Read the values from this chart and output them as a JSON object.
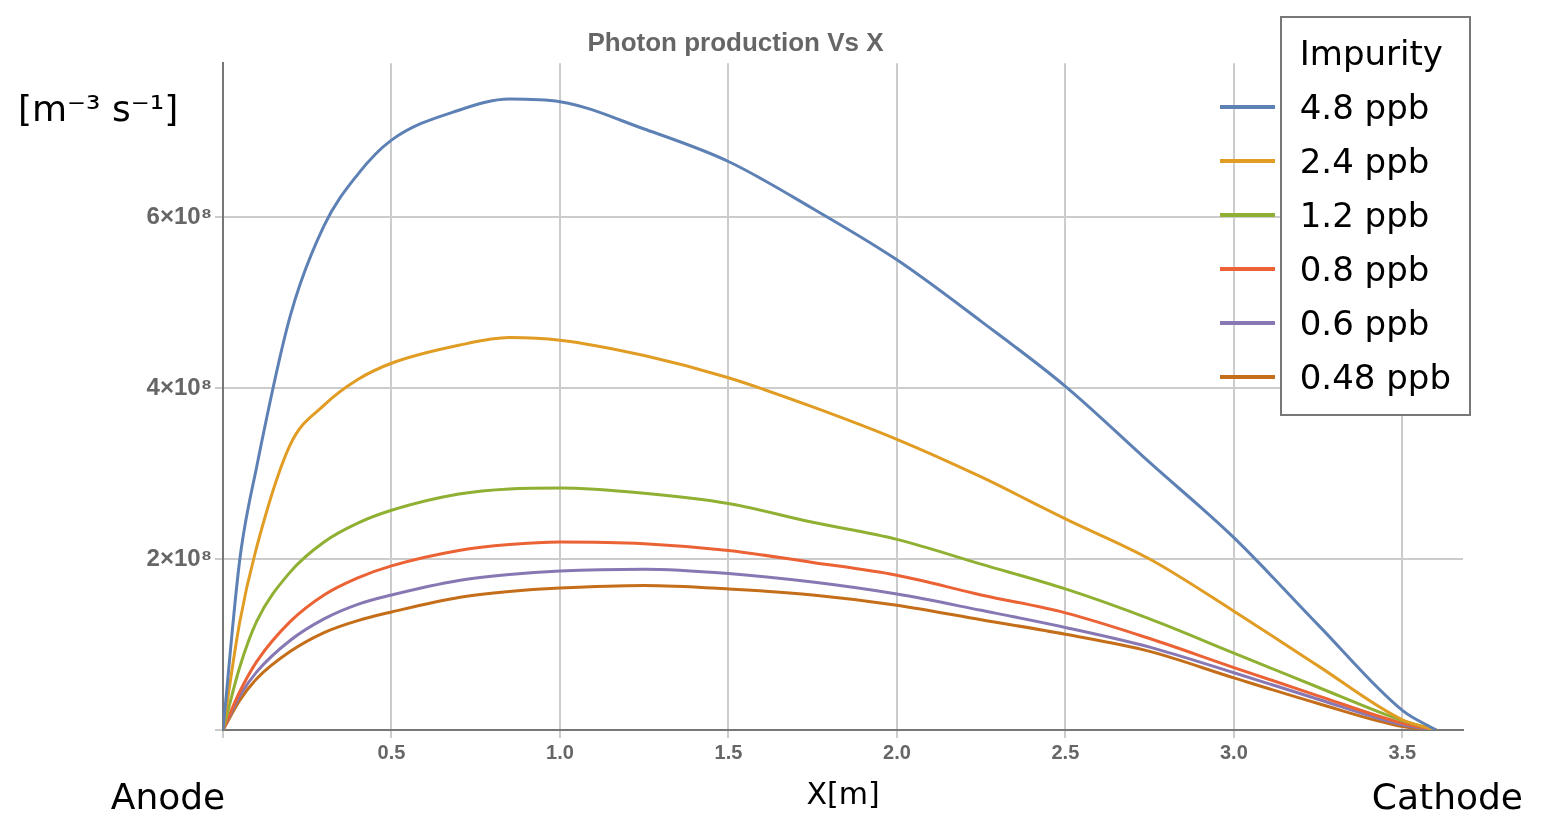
{
  "chart_data": {
    "type": "line",
    "title": "Photon production Vs X",
    "xlabel": "X[m]",
    "ylabel": "[m⁻³ s⁻¹]",
    "legend_title": "Impurity",
    "legend": "top right",
    "grid": true,
    "marker": "none",
    "line_style": "solid",
    "annotations": [
      "Anode",
      "Cathode"
    ],
    "xlim": [
      0,
      3.68
    ],
    "ylim": [
      0,
      780000000.0
    ],
    "xticks": [
      {
        "value": 0,
        "label": null
      },
      0.5,
      {
        "value": 1,
        "label": "1.0"
      },
      1.5,
      {
        "value": 2,
        "label": "2.0"
      },
      2.5,
      {
        "value": 3,
        "label": "3.0"
      },
      3.5
    ],
    "yticks": [
      {
        "value": 0,
        "label": null
      },
      {
        "value": 200000000.0,
        "label": "2×10⁸"
      },
      {
        "value": 400000000.0,
        "label": "4×10⁸"
      },
      {
        "value": 600000000.0,
        "label": "6×10⁸"
      }
    ],
    "x": [
      0,
      0.05,
      0.1,
      0.2,
      0.3,
      0.4,
      0.5,
      0.7,
      0.85,
      1.0,
      1.25,
      1.5,
      1.75,
      2.0,
      2.25,
      2.5,
      2.75,
      3.0,
      3.25,
      3.5,
      3.6
    ],
    "series": [
      {
        "name": "4.8 ppb",
        "color": "#5e81b5",
        "values": [
          0,
          200000000.0,
          308000000.0,
          485000000.0,
          590000000.0,
          650000000.0,
          690000000.0,
          725000000.0,
          738000000.0,
          735000000.0,
          703000000.0,
          665000000.0,
          610000000.0,
          550000000.0,
          478000000.0,
          402000000.0,
          313000000.0,
          225000000.0,
          123000000.0,
          23000000.0,
          0
        ]
      },
      {
        "name": "2.4 ppb",
        "color": "#e19c24",
        "values": [
          0,
          127000000.0,
          214000000.0,
          334000000.0,
          380000000.0,
          410000000.0,
          429000000.0,
          450000000.0,
          459000000.0,
          456000000.0,
          438000000.0,
          412000000.0,
          378000000.0,
          340000000.0,
          296000000.0,
          247000000.0,
          200000000.0,
          139000000.0,
          75000000.0,
          12000000.0,
          0
        ]
      },
      {
        "name": "1.2 ppb",
        "color": "#8fb032",
        "values": [
          0,
          74000000.0,
          127000000.0,
          185000000.0,
          220000000.0,
          242000000.0,
          257000000.0,
          276000000.0,
          282000000.0,
          283000000.0,
          277000000.0,
          265000000.0,
          243000000.0,
          223000000.0,
          194000000.0,
          165000000.0,
          130000000.0,
          90000000.0,
          50000000.0,
          11000000.0,
          0
        ]
      },
      {
        "name": "0.8 ppb",
        "color": "#eb6235",
        "values": [
          0,
          45000000.0,
          80000000.0,
          127000000.0,
          158000000.0,
          178000000.0,
          192000000.0,
          210000000.0,
          217000000.0,
          220000000.0,
          218000000.0,
          210000000.0,
          196000000.0,
          181000000.0,
          158000000.0,
          137000000.0,
          107000000.0,
          73000000.0,
          40000000.0,
          8000000.0,
          0
        ]
      },
      {
        "name": "0.6 ppb",
        "color": "#8778b3",
        "values": [
          0,
          40000000.0,
          68000000.0,
          105000000.0,
          130000000.0,
          147000000.0,
          158000000.0,
          175000000.0,
          182000000.0,
          186000000.0,
          188000000.0,
          183000000.0,
          173000000.0,
          159000000.0,
          140000000.0,
          120000000.0,
          97000000.0,
          67000000.0,
          36000000.0,
          6000000.0,
          0
        ]
      },
      {
        "name": "0.48 ppb",
        "color": "#c56e1a",
        "values": [
          0,
          35000000.0,
          60000000.0,
          92000000.0,
          114000000.0,
          128000000.0,
          138000000.0,
          155000000.0,
          162000000.0,
          166000000.0,
          169000000.0,
          165000000.0,
          158000000.0,
          146000000.0,
          129000000.0,
          112000000.0,
          92000000.0,
          61000000.0,
          31000000.0,
          4000000.0,
          0
        ]
      }
    ]
  }
}
